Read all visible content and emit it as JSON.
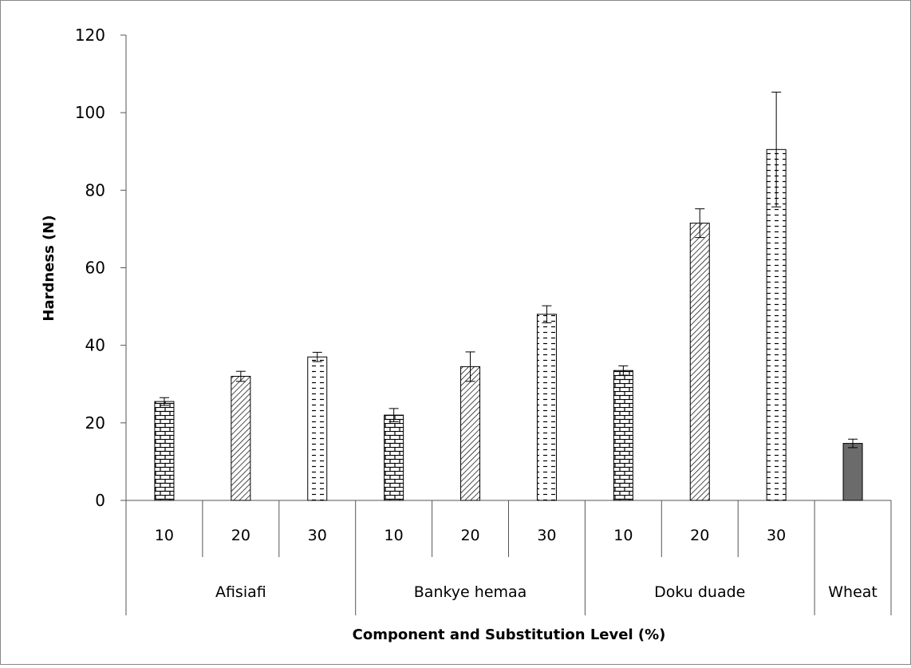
{
  "chart_data": {
    "type": "bar",
    "title": "",
    "xlabel": "Component and Substitution Level (%)",
    "ylabel": "Hardness (N)",
    "ylim": [
      0,
      120
    ],
    "yticks": [
      0,
      20,
      40,
      60,
      80,
      100,
      120
    ],
    "grid": false,
    "legend": "none",
    "groups": [
      {
        "name": "Afisiafi",
        "levels": [
          "10",
          "20",
          "30"
        ],
        "values": [
          25.5,
          32,
          37
        ],
        "errors": [
          1,
          1.3,
          1.2
        ]
      },
      {
        "name": "Bankye hemaa",
        "levels": [
          "10",
          "20",
          "30"
        ],
        "values": [
          22,
          34.5,
          48
        ],
        "errors": [
          1.7,
          3.8,
          2.2
        ]
      },
      {
        "name": "Doku duade",
        "levels": [
          "10",
          "20",
          "30"
        ],
        "values": [
          33.5,
          71.5,
          90.5
        ],
        "errors": [
          1.2,
          3.7,
          14.8
        ]
      },
      {
        "name": "Wheat",
        "levels": [
          ""
        ],
        "values": [
          14.7
        ],
        "errors": [
          1.1
        ]
      }
    ],
    "patterns": {
      "10": "brick",
      "20": "diagonal-hatch",
      "30": "dashed-horizontal",
      "control": "solid"
    },
    "colors": {
      "control_fill": "#6b6b6b",
      "stroke": "#000000",
      "axis": "#555555",
      "frame": "#888888"
    }
  }
}
